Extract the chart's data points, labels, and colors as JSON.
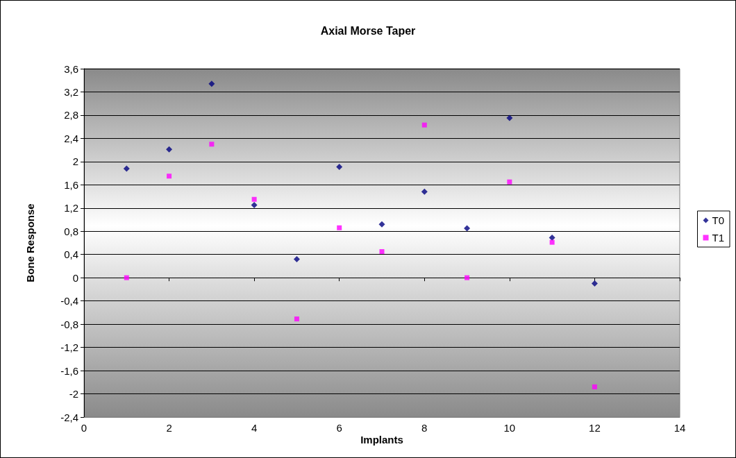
{
  "chart_data": {
    "type": "scatter",
    "title": "Axial Morse Taper",
    "xlabel": "Implants",
    "ylabel": "Bone Response",
    "x": [
      1,
      2,
      3,
      4,
      5,
      6,
      7,
      8,
      9,
      10,
      11,
      12
    ],
    "series": [
      {
        "name": "T0",
        "color": "#000080",
        "marker": "diamond",
        "values": [
          1.88,
          2.21,
          3.34,
          1.25,
          0.32,
          1.91,
          0.92,
          1.48,
          0.85,
          2.75,
          0.69,
          -0.1
        ]
      },
      {
        "name": "T1",
        "color": "#ff00ff",
        "marker": "square",
        "values": [
          0,
          1.75,
          2.3,
          1.35,
          -0.71,
          0.86,
          0.45,
          2.63,
          0,
          1.65,
          0.61,
          -1.88
        ]
      }
    ],
    "xlim": [
      0,
      14
    ],
    "xticks": [
      0,
      2,
      4,
      6,
      8,
      10,
      12,
      14
    ],
    "ylim": [
      -2.4,
      3.6
    ],
    "yticks": [
      {
        "value": -2.4,
        "label": "-2,4"
      },
      {
        "value": -2,
        "label": "-2"
      },
      {
        "value": -1.6,
        "label": "-1,6"
      },
      {
        "value": -1.2,
        "label": "-1,2"
      },
      {
        "value": -0.8,
        "label": "-0,8"
      },
      {
        "value": -0.4,
        "label": "-0,4"
      },
      {
        "value": 0,
        "label": "0"
      },
      {
        "value": 0.4,
        "label": "0,4"
      },
      {
        "value": 0.8,
        "label": "0,8"
      },
      {
        "value": 1.2,
        "label": "1,2"
      },
      {
        "value": 1.6,
        "label": "1,6"
      },
      {
        "value": 2,
        "label": "2"
      },
      {
        "value": 2.4,
        "label": "2,4"
      },
      {
        "value": 2.8,
        "label": "2,8"
      },
      {
        "value": 3.2,
        "label": "3,2"
      },
      {
        "value": 3.6,
        "label": "3,6"
      }
    ],
    "grid": "y",
    "legend": "right"
  }
}
